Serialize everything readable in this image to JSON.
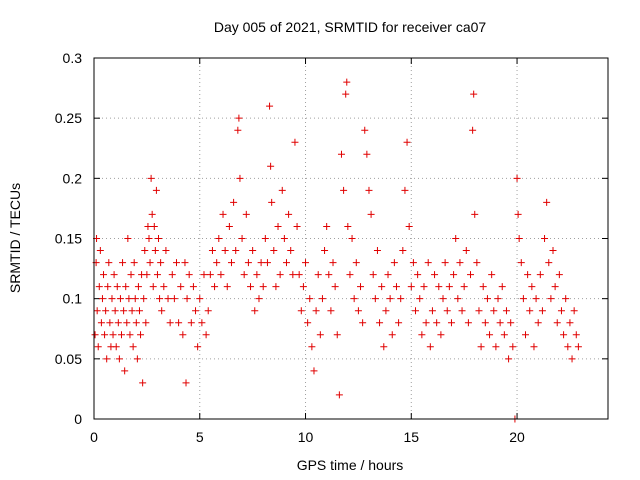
{
  "chart_data": {
    "type": "scatter",
    "title": "Day 005 of 2021, SRMTID for receiver ca07",
    "xlabel": "GPS time / hours",
    "ylabel": "SRMTID / TECUs",
    "xlim": [
      0,
      24.3
    ],
    "ylim": [
      0,
      0.3
    ],
    "xticks": [
      0,
      5,
      10,
      15,
      20
    ],
    "xtick_labels": [
      "0",
      "5",
      "10",
      "15",
      "20"
    ],
    "yticks": [
      0,
      0.05,
      0.1,
      0.15,
      0.2,
      0.25,
      0.3
    ],
    "ytick_labels": [
      "0",
      "0.05",
      "0.1",
      "0.15",
      "0.2",
      "0.25",
      "0.3"
    ],
    "grid": true,
    "marker": "plus",
    "color": "#e00000",
    "series": [
      {
        "name": "SRMTID",
        "points": [
          [
            0.05,
            0.07
          ],
          [
            0.1,
            0.13
          ],
          [
            0.12,
            0.15
          ],
          [
            0.15,
            0.09
          ],
          [
            0.2,
            0.06
          ],
          [
            0.25,
            0.11
          ],
          [
            0.3,
            0.14
          ],
          [
            0.35,
            0.08
          ],
          [
            0.4,
            0.1
          ],
          [
            0.45,
            0.12
          ],
          [
            0.5,
            0.07
          ],
          [
            0.55,
            0.09
          ],
          [
            0.6,
            0.05
          ],
          [
            0.65,
            0.11
          ],
          [
            0.7,
            0.13
          ],
          [
            0.75,
            0.08
          ],
          [
            0.8,
            0.06
          ],
          [
            0.85,
            0.1
          ],
          [
            0.9,
            0.07
          ],
          [
            0.95,
            0.12
          ],
          [
            1.0,
            0.09
          ],
          [
            1.05,
            0.06
          ],
          [
            1.1,
            0.11
          ],
          [
            1.15,
            0.08
          ],
          [
            1.2,
            0.05
          ],
          [
            1.25,
            0.1
          ],
          [
            1.3,
            0.07
          ],
          [
            1.35,
            0.13
          ],
          [
            1.4,
            0.09
          ],
          [
            1.45,
            0.04
          ],
          [
            1.5,
            0.11
          ],
          [
            1.55,
            0.08
          ],
          [
            1.6,
            0.15
          ],
          [
            1.65,
            0.1
          ],
          [
            1.7,
            0.07
          ],
          [
            1.75,
            0.12
          ],
          [
            1.8,
            0.09
          ],
          [
            1.85,
            0.06
          ],
          [
            1.9,
            0.13
          ],
          [
            1.95,
            0.1
          ],
          [
            2.0,
            0.08
          ],
          [
            2.05,
            0.05
          ],
          [
            2.1,
            0.11
          ],
          [
            2.15,
            0.09
          ],
          [
            2.2,
            0.07
          ],
          [
            2.25,
            0.12
          ],
          [
            2.3,
            0.03
          ],
          [
            2.35,
            0.1
          ],
          [
            2.4,
            0.14
          ],
          [
            2.45,
            0.08
          ],
          [
            2.5,
            0.12
          ],
          [
            2.55,
            0.16
          ],
          [
            2.6,
            0.15
          ],
          [
            2.65,
            0.13
          ],
          [
            2.7,
            0.2
          ],
          [
            2.75,
            0.17
          ],
          [
            2.8,
            0.11
          ],
          [
            2.85,
            0.16
          ],
          [
            2.9,
            0.14
          ],
          [
            2.95,
            0.19
          ],
          [
            3.0,
            0.12
          ],
          [
            3.05,
            0.15
          ],
          [
            3.1,
            0.1
          ],
          [
            3.15,
            0.13
          ],
          [
            3.2,
            0.09
          ],
          [
            3.3,
            0.11
          ],
          [
            3.4,
            0.14
          ],
          [
            3.5,
            0.1
          ],
          [
            3.6,
            0.08
          ],
          [
            3.7,
            0.12
          ],
          [
            3.8,
            0.1
          ],
          [
            3.9,
            0.13
          ],
          [
            4.0,
            0.08
          ],
          [
            4.1,
            0.11
          ],
          [
            4.2,
            0.07
          ],
          [
            4.3,
            0.13
          ],
          [
            4.35,
            0.03
          ],
          [
            4.4,
            0.1
          ],
          [
            4.5,
            0.12
          ],
          [
            4.6,
            0.08
          ],
          [
            4.7,
            0.11
          ],
          [
            4.8,
            0.09
          ],
          [
            4.9,
            0.06
          ],
          [
            5.0,
            0.1
          ],
          [
            5.1,
            0.08
          ],
          [
            5.2,
            0.12
          ],
          [
            5.3,
            0.07
          ],
          [
            5.4,
            0.09
          ],
          [
            5.5,
            0.12
          ],
          [
            5.6,
            0.14
          ],
          [
            5.7,
            0.11
          ],
          [
            5.8,
            0.13
          ],
          [
            5.9,
            0.15
          ],
          [
            6.0,
            0.12
          ],
          [
            6.1,
            0.17
          ],
          [
            6.2,
            0.14
          ],
          [
            6.3,
            0.11
          ],
          [
            6.4,
            0.16
          ],
          [
            6.5,
            0.13
          ],
          [
            6.6,
            0.18
          ],
          [
            6.7,
            0.14
          ],
          [
            6.8,
            0.24
          ],
          [
            6.85,
            0.25
          ],
          [
            6.9,
            0.2
          ],
          [
            7.0,
            0.15
          ],
          [
            7.1,
            0.12
          ],
          [
            7.2,
            0.17
          ],
          [
            7.3,
            0.13
          ],
          [
            7.4,
            0.11
          ],
          [
            7.5,
            0.14
          ],
          [
            7.6,
            0.09
          ],
          [
            7.7,
            0.12
          ],
          [
            7.8,
            0.1
          ],
          [
            7.9,
            0.13
          ],
          [
            8.0,
            0.11
          ],
          [
            8.1,
            0.15
          ],
          [
            8.2,
            0.13
          ],
          [
            8.3,
            0.26
          ],
          [
            8.35,
            0.21
          ],
          [
            8.4,
            0.18
          ],
          [
            8.5,
            0.14
          ],
          [
            8.6,
            0.11
          ],
          [
            8.7,
            0.16
          ],
          [
            8.8,
            0.12
          ],
          [
            8.9,
            0.19
          ],
          [
            9.0,
            0.15
          ],
          [
            9.1,
            0.13
          ],
          [
            9.2,
            0.17
          ],
          [
            9.3,
            0.14
          ],
          [
            9.4,
            0.12
          ],
          [
            9.5,
            0.23
          ],
          [
            9.6,
            0.16
          ],
          [
            9.7,
            0.12
          ],
          [
            9.8,
            0.09
          ],
          [
            9.9,
            0.11
          ],
          [
            10.0,
            0.13
          ],
          [
            10.1,
            0.08
          ],
          [
            10.2,
            0.1
          ],
          [
            10.3,
            0.06
          ],
          [
            10.4,
            0.04
          ],
          [
            10.5,
            0.09
          ],
          [
            10.6,
            0.12
          ],
          [
            10.7,
            0.07
          ],
          [
            10.8,
            0.1
          ],
          [
            10.9,
            0.14
          ],
          [
            11.0,
            0.16
          ],
          [
            11.1,
            0.12
          ],
          [
            11.2,
            0.09
          ],
          [
            11.3,
            0.13
          ],
          [
            11.4,
            0.11
          ],
          [
            11.5,
            0.07
          ],
          [
            11.6,
            0.02
          ],
          [
            11.7,
            0.22
          ],
          [
            11.8,
            0.19
          ],
          [
            11.9,
            0.27
          ],
          [
            11.95,
            0.28
          ],
          [
            12.0,
            0.16
          ],
          [
            12.1,
            0.12
          ],
          [
            12.2,
            0.15
          ],
          [
            12.3,
            0.1
          ],
          [
            12.4,
            0.13
          ],
          [
            12.5,
            0.09
          ],
          [
            12.6,
            0.11
          ],
          [
            12.7,
            0.08
          ],
          [
            12.8,
            0.24
          ],
          [
            12.9,
            0.22
          ],
          [
            13.0,
            0.19
          ],
          [
            13.1,
            0.17
          ],
          [
            13.2,
            0.12
          ],
          [
            13.3,
            0.1
          ],
          [
            13.4,
            0.14
          ],
          [
            13.5,
            0.08
          ],
          [
            13.6,
            0.11
          ],
          [
            13.7,
            0.06
          ],
          [
            13.8,
            0.09
          ],
          [
            13.9,
            0.12
          ],
          [
            14.0,
            0.1
          ],
          [
            14.1,
            0.07
          ],
          [
            14.2,
            0.13
          ],
          [
            14.3,
            0.11
          ],
          [
            14.4,
            0.08
          ],
          [
            14.5,
            0.1
          ],
          [
            14.6,
            0.14
          ],
          [
            14.7,
            0.19
          ],
          [
            14.8,
            0.23
          ],
          [
            14.9,
            0.16
          ],
          [
            15.0,
            0.11
          ],
          [
            15.1,
            0.13
          ],
          [
            15.2,
            0.09
          ],
          [
            15.3,
            0.12
          ],
          [
            15.4,
            0.1
          ],
          [
            15.5,
            0.07
          ],
          [
            15.6,
            0.11
          ],
          [
            15.7,
            0.08
          ],
          [
            15.8,
            0.13
          ],
          [
            15.9,
            0.06
          ],
          [
            16.0,
            0.09
          ],
          [
            16.1,
            0.12
          ],
          [
            16.2,
            0.08
          ],
          [
            16.3,
            0.11
          ],
          [
            16.4,
            0.07
          ],
          [
            16.5,
            0.1
          ],
          [
            16.6,
            0.13
          ],
          [
            16.7,
            0.09
          ],
          [
            16.8,
            0.11
          ],
          [
            16.9,
            0.08
          ],
          [
            17.0,
            0.12
          ],
          [
            17.1,
            0.15
          ],
          [
            17.2,
            0.1
          ],
          [
            17.3,
            0.13
          ],
          [
            17.4,
            0.09
          ],
          [
            17.5,
            0.11
          ],
          [
            17.6,
            0.14
          ],
          [
            17.7,
            0.08
          ],
          [
            17.8,
            0.12
          ],
          [
            17.9,
            0.24
          ],
          [
            17.95,
            0.27
          ],
          [
            18.0,
            0.17
          ],
          [
            18.1,
            0.13
          ],
          [
            18.2,
            0.09
          ],
          [
            18.3,
            0.06
          ],
          [
            18.4,
            0.11
          ],
          [
            18.5,
            0.08
          ],
          [
            18.6,
            0.1
          ],
          [
            18.7,
            0.07
          ],
          [
            18.8,
            0.12
          ],
          [
            18.9,
            0.09
          ],
          [
            19.0,
            0.06
          ],
          [
            19.1,
            0.1
          ],
          [
            19.2,
            0.08
          ],
          [
            19.3,
            0.11
          ],
          [
            19.4,
            0.07
          ],
          [
            19.5,
            0.09
          ],
          [
            19.6,
            0.05
          ],
          [
            19.7,
            0.08
          ],
          [
            19.8,
            0.06
          ],
          [
            19.9,
            0.0
          ],
          [
            20.0,
            0.2
          ],
          [
            20.05,
            0.17
          ],
          [
            20.1,
            0.15
          ],
          [
            20.2,
            0.13
          ],
          [
            20.3,
            0.1
          ],
          [
            20.4,
            0.07
          ],
          [
            20.5,
            0.12
          ],
          [
            20.6,
            0.09
          ],
          [
            20.7,
            0.11
          ],
          [
            20.8,
            0.06
          ],
          [
            20.9,
            0.1
          ],
          [
            21.0,
            0.08
          ],
          [
            21.1,
            0.12
          ],
          [
            21.2,
            0.09
          ],
          [
            21.3,
            0.15
          ],
          [
            21.4,
            0.18
          ],
          [
            21.5,
            0.13
          ],
          [
            21.6,
            0.1
          ],
          [
            21.7,
            0.14
          ],
          [
            21.8,
            0.11
          ],
          [
            21.9,
            0.08
          ],
          [
            22.0,
            0.12
          ],
          [
            22.1,
            0.09
          ],
          [
            22.2,
            0.07
          ],
          [
            22.3,
            0.1
          ],
          [
            22.4,
            0.06
          ],
          [
            22.5,
            0.08
          ],
          [
            22.6,
            0.05
          ],
          [
            22.7,
            0.09
          ],
          [
            22.8,
            0.07
          ],
          [
            22.9,
            0.06
          ]
        ]
      }
    ]
  }
}
